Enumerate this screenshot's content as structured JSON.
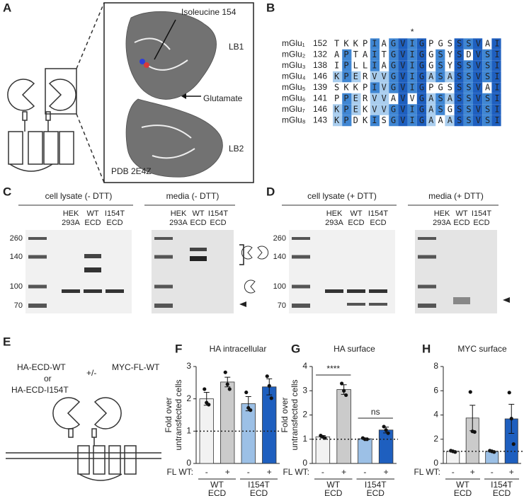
{
  "panels": {
    "A": {
      "label": "A",
      "residue": "Isoleucine 154",
      "lobe1": "LB1",
      "ligand": "Glutamate",
      "lobe2": "LB2",
      "pdb": "PDB 2E4Z"
    },
    "B": {
      "label": "B",
      "star": "*",
      "rows": [
        {
          "name": "mGlu₁",
          "start": 152,
          "seq": "TKKPIAGVIGPGSSSVAI"
        },
        {
          "name": "mGlu₂",
          "start": 132,
          "seq": "APTAITGVIGGSYSDVSI"
        },
        {
          "name": "mGlu₃",
          "start": 138,
          "seq": "IPLLIAGVIGGSYSSVSI"
        },
        {
          "name": "mGlu₄",
          "start": 146,
          "seq": "KPERVVGVIGASASSVSI"
        },
        {
          "name": "mGlu₅",
          "start": 139,
          "seq": "SKKPIVGVIGPGSSSVAI"
        },
        {
          "name": "mGlu₆",
          "start": 141,
          "seq": "PPERVVAVVGASASSVSI"
        },
        {
          "name": "mGlu₇",
          "start": 146,
          "seq": "KPEKVVGVIGASGSSVSI"
        },
        {
          "name": "mGlu₈",
          "start": 143,
          "seq": "KPDKISGVIGAAASSVSI"
        }
      ]
    },
    "C": {
      "label": "C",
      "blots": [
        {
          "title": "cell lysate (- DTT)",
          "lanes": [
            [
              "HEK",
              "293A"
            ],
            [
              "WT",
              "ECD"
            ],
            [
              "I154T",
              "ECD"
            ]
          ],
          "markers": [
            260,
            140,
            100,
            70
          ]
        },
        {
          "title": "media (- DTT)",
          "lanes": [
            [
              "HEK",
              "293A"
            ],
            [
              "WT",
              "ECD"
            ],
            [
              "I154T",
              "ECD"
            ]
          ]
        }
      ]
    },
    "D": {
      "label": "D",
      "blots": [
        {
          "title": "cell lysate (+ DTT)",
          "lanes": [
            [
              "HEK",
              "293A"
            ],
            [
              "WT",
              "ECD"
            ],
            [
              "I154T",
              "ECD"
            ]
          ],
          "markers": [
            260,
            140,
            100,
            70
          ]
        },
        {
          "title": "media (+ DTT)",
          "lanes": [
            [
              "HEK",
              "293A"
            ],
            [
              "WT",
              "ECD"
            ],
            [
              "I154T",
              "ECD"
            ]
          ]
        }
      ]
    },
    "E": {
      "label": "E",
      "construct1": "HA-ECD-WT",
      "or": "or",
      "construct2": "HA-ECD-I154T",
      "plusminus": "+/-",
      "construct3": "MYC-FL-WT"
    }
  },
  "chart_data": [
    {
      "type": "bar",
      "label": "F",
      "title": "HA intracellular",
      "y_label": [
        "Fold over",
        "untransfected cells"
      ],
      "x_label": "FL WT:",
      "categories": [
        "-",
        "+",
        "-",
        "+"
      ],
      "groups": [
        [
          "WT",
          "ECD"
        ],
        [
          "I154T",
          "ECD"
        ]
      ],
      "values": [
        2.0,
        2.52,
        1.85,
        2.37
      ],
      "errors": [
        0.2,
        0.15,
        0.22,
        0.25
      ],
      "points": [
        [
          2.3,
          1.88,
          1.82
        ],
        [
          2.82,
          2.45,
          2.3
        ],
        [
          2.2,
          1.72,
          1.65
        ],
        [
          2.7,
          2.4,
          2.02
        ]
      ],
      "colors": [
        "#f2f2f2",
        "#cbcbcb",
        "#9cc0e6",
        "#1e5fbf"
      ],
      "baseline": 1,
      "ylim": [
        0,
        3
      ],
      "yticks": [
        0,
        1,
        2,
        3
      ]
    },
    {
      "type": "bar",
      "label": "G",
      "title": "HA surface",
      "y_label": [
        "Fold over",
        "untransfected cells"
      ],
      "x_label": "FL WT:",
      "categories": [
        "-",
        "+",
        "-",
        "+"
      ],
      "groups": [
        [
          "WT",
          "ECD"
        ],
        [
          "I154T",
          "ECD"
        ]
      ],
      "values": [
        1.1,
        3.05,
        1.02,
        1.38
      ],
      "errors": [
        0.05,
        0.2,
        0.03,
        0.12
      ],
      "points": [
        [
          1.15,
          1.1,
          1.05
        ],
        [
          3.3,
          3.0,
          2.82
        ],
        [
          1.05,
          1.0,
          1.0
        ],
        [
          1.52,
          1.38,
          1.25
        ]
      ],
      "colors": [
        "#f2f2f2",
        "#cbcbcb",
        "#9cc0e6",
        "#1e5fbf"
      ],
      "baseline": 1,
      "significance": [
        "****",
        "ns"
      ],
      "ylim": [
        0,
        4
      ],
      "yticks": [
        0,
        1,
        2,
        3,
        4
      ]
    },
    {
      "type": "bar",
      "label": "H",
      "title": "MYC surface",
      "x_label": "FL WT:",
      "categories": [
        "-",
        "+",
        "-",
        "+"
      ],
      "groups": [
        [
          "WT",
          "ECD"
        ],
        [
          "I154T",
          "ECD"
        ]
      ],
      "values": [
        1.0,
        3.75,
        1.0,
        3.68
      ],
      "errors": [
        0.05,
        1.05,
        0.05,
        1.2
      ],
      "points": [
        [
          1.05,
          1.0,
          0.95
        ],
        [
          5.9,
          2.65,
          2.6
        ],
        [
          1.05,
          1.0,
          0.95
        ],
        [
          5.85,
          3.7,
          1.6
        ]
      ],
      "colors": [
        "#f2f2f2",
        "#cbcbcb",
        "#9cc0e6",
        "#1e5fbf"
      ],
      "baseline": 1,
      "ylim": [
        0,
        8
      ],
      "yticks": [
        0,
        2,
        4,
        6,
        8
      ]
    }
  ]
}
